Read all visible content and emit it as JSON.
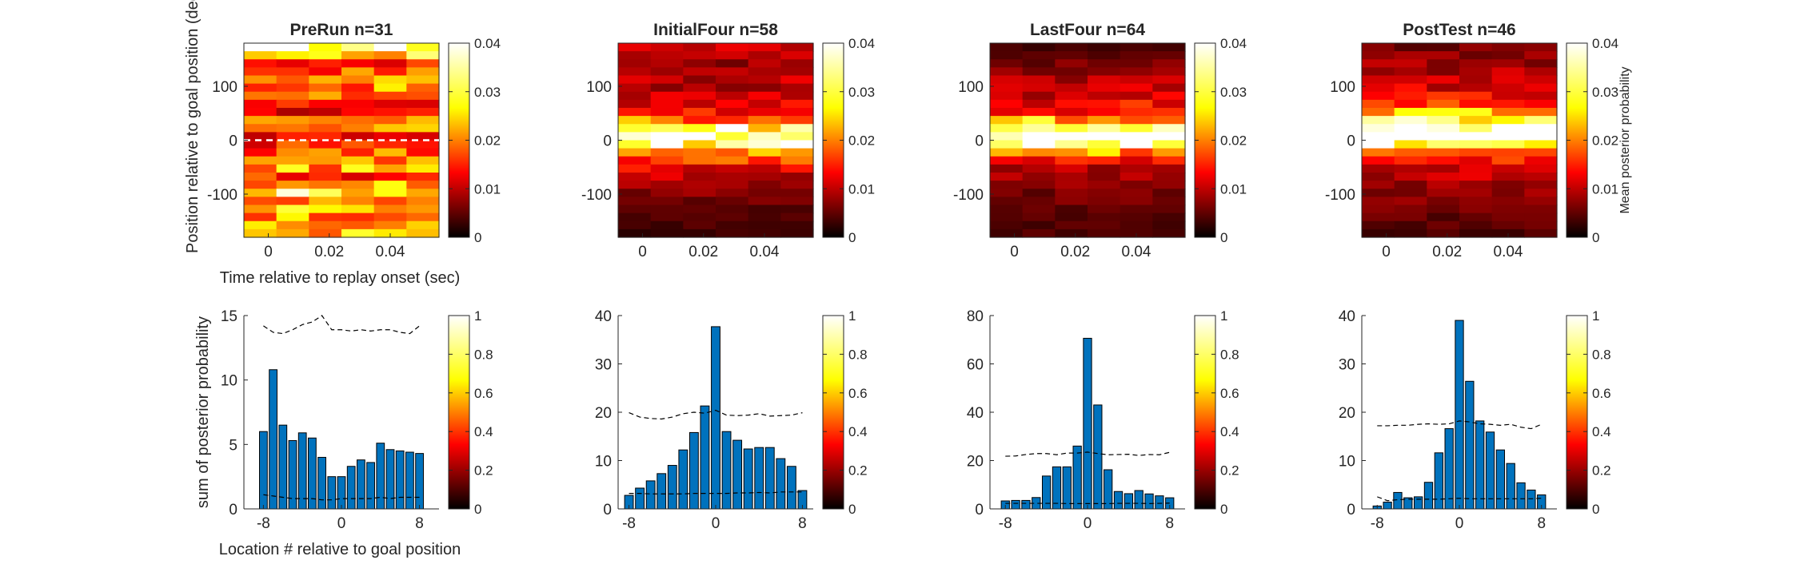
{
  "colormap_stops": [
    "#000000",
    "#800000",
    "#ff0000",
    "#ff8000",
    "#ffff00",
    "#ffff80",
    "#ffffff"
  ],
  "bar_color": "#0072bd",
  "chart_data": [
    {
      "type": "heatmap",
      "title": "PreRun n=31",
      "ylabel": "Position relative to goal position (deg",
      "xlabel": "Time relative to replay onset (sec)",
      "xticks": [
        "0",
        "0.02",
        "0.04"
      ],
      "xtick_values": [
        0,
        0.02,
        0.04
      ],
      "yticks": [
        "100",
        "0",
        "-100"
      ],
      "ytick_values": [
        100,
        0,
        -100
      ],
      "xlim": [
        -0.008,
        0.056
      ],
      "ylim": [
        -180,
        180
      ],
      "dashed_line_y": 0,
      "colorbar_ticks": [
        "0",
        "0.01",
        "0.02",
        "0.03",
        "0.04"
      ],
      "colorbar_label": "",
      "clim": [
        0,
        0.04
      ],
      "profile": [
        [
          165,
          0.036
        ],
        [
          150,
          0.026
        ],
        [
          135,
          0.015
        ],
        [
          120,
          0.018
        ],
        [
          105,
          0.022
        ],
        [
          90,
          0.02
        ],
        [
          75,
          0.018
        ],
        [
          60,
          0.014
        ],
        [
          45,
          0.012
        ],
        [
          30,
          0.018
        ],
        [
          15,
          0.022
        ],
        [
          0,
          0.012
        ],
        [
          -15,
          0.015
        ],
        [
          -30,
          0.018
        ],
        [
          -45,
          0.02
        ],
        [
          -60,
          0.022
        ],
        [
          -75,
          0.016
        ],
        [
          -90,
          0.024
        ],
        [
          -105,
          0.03
        ],
        [
          -120,
          0.018
        ],
        [
          -135,
          0.024
        ],
        [
          -150,
          0.022
        ],
        [
          -165,
          0.02
        ],
        [
          -180,
          0.024
        ]
      ]
    },
    {
      "type": "heatmap",
      "title": "InitialFour n=58",
      "xticks": [
        "0",
        "0.02",
        "0.04"
      ],
      "xtick_values": [
        0,
        0.02,
        0.04
      ],
      "yticks": [
        "100",
        "0",
        "-100"
      ],
      "ytick_values": [
        100,
        0,
        -100
      ],
      "xlim": [
        -0.008,
        0.056
      ],
      "ylim": [
        -180,
        180
      ],
      "colorbar_ticks": [
        "0",
        "0.01",
        "0.02",
        "0.03",
        "0.04"
      ],
      "colorbar_label": "",
      "clim": [
        0,
        0.04
      ],
      "profile": [
        [
          165,
          0.01
        ],
        [
          150,
          0.009
        ],
        [
          135,
          0.008
        ],
        [
          120,
          0.009
        ],
        [
          105,
          0.01
        ],
        [
          90,
          0.009
        ],
        [
          75,
          0.01
        ],
        [
          60,
          0.012
        ],
        [
          45,
          0.014
        ],
        [
          30,
          0.02
        ],
        [
          15,
          0.032
        ],
        [
          0,
          0.04
        ],
        [
          -15,
          0.032
        ],
        [
          -30,
          0.022
        ],
        [
          -45,
          0.016
        ],
        [
          -60,
          0.013
        ],
        [
          -75,
          0.01
        ],
        [
          -90,
          0.008
        ],
        [
          -105,
          0.007
        ],
        [
          -120,
          0.006
        ],
        [
          -135,
          0.005
        ],
        [
          -150,
          0.004
        ],
        [
          -165,
          0.004
        ],
        [
          -180,
          0.003
        ]
      ]
    },
    {
      "type": "heatmap",
      "title": "LastFour n=64",
      "xticks": [
        "0",
        "0.02",
        "0.04"
      ],
      "xtick_values": [
        0,
        0.02,
        0.04
      ],
      "yticks": [
        "100",
        "0",
        "-100"
      ],
      "ytick_values": [
        100,
        0,
        -100
      ],
      "xlim": [
        -0.008,
        0.056
      ],
      "ylim": [
        -180,
        180
      ],
      "colorbar_ticks": [
        "0",
        "0.01",
        "0.02",
        "0.03",
        "0.04"
      ],
      "colorbar_label": "",
      "clim": [
        0,
        0.04
      ],
      "profile": [
        [
          165,
          0.004
        ],
        [
          150,
          0.005
        ],
        [
          135,
          0.006
        ],
        [
          120,
          0.008
        ],
        [
          105,
          0.009
        ],
        [
          90,
          0.01
        ],
        [
          75,
          0.011
        ],
        [
          60,
          0.013
        ],
        [
          45,
          0.016
        ],
        [
          30,
          0.024
        ],
        [
          15,
          0.04
        ],
        [
          0,
          0.042
        ],
        [
          -15,
          0.036
        ],
        [
          -30,
          0.022
        ],
        [
          -45,
          0.014
        ],
        [
          -60,
          0.01
        ],
        [
          -75,
          0.008
        ],
        [
          -90,
          0.007
        ],
        [
          -105,
          0.006
        ],
        [
          -120,
          0.006
        ],
        [
          -135,
          0.005
        ],
        [
          -150,
          0.005
        ],
        [
          -165,
          0.004
        ],
        [
          -180,
          0.004
        ]
      ]
    },
    {
      "type": "heatmap",
      "title": "PostTest n=46",
      "xticks": [
        "0",
        "0.02",
        "0.04"
      ],
      "xtick_values": [
        0,
        0.02,
        0.04
      ],
      "yticks": [
        "100",
        "0",
        "-100"
      ],
      "ytick_values": [
        100,
        0,
        -100
      ],
      "xlim": [
        -0.008,
        0.056
      ],
      "ylim": [
        -180,
        180
      ],
      "colorbar_ticks": [
        "0",
        "0.01",
        "0.02",
        "0.03",
        "0.04"
      ],
      "colorbar_label": "Mean posterior probability",
      "clim": [
        0,
        0.04
      ],
      "profile": [
        [
          165,
          0.006
        ],
        [
          150,
          0.007
        ],
        [
          135,
          0.008
        ],
        [
          120,
          0.009
        ],
        [
          105,
          0.01
        ],
        [
          90,
          0.011
        ],
        [
          75,
          0.013
        ],
        [
          60,
          0.016
        ],
        [
          45,
          0.022
        ],
        [
          30,
          0.03
        ],
        [
          15,
          0.038
        ],
        [
          0,
          0.042
        ],
        [
          -15,
          0.034
        ],
        [
          -30,
          0.022
        ],
        [
          -45,
          0.016
        ],
        [
          -60,
          0.012
        ],
        [
          -75,
          0.01
        ],
        [
          -90,
          0.008
        ],
        [
          -105,
          0.008
        ],
        [
          -120,
          0.007
        ],
        [
          -135,
          0.006
        ],
        [
          -150,
          0.005
        ],
        [
          -165,
          0.005
        ],
        [
          -180,
          0.004
        ]
      ]
    },
    {
      "type": "bar",
      "ylabel": "sum of posterior probability",
      "xlabel": "Location # relative to goal position",
      "x": [
        -8,
        -7,
        -6,
        -5,
        -4,
        -3,
        -2,
        -1,
        0,
        1,
        2,
        3,
        4,
        5,
        6,
        7,
        8
      ],
      "values": [
        6.0,
        10.8,
        6.5,
        5.3,
        5.9,
        5.5,
        4.0,
        2.5,
        2.5,
        3.3,
        3.8,
        3.6,
        5.1,
        4.6,
        4.5,
        4.4,
        4.3
      ],
      "xticks": [
        "-8",
        "0",
        "8"
      ],
      "xtick_values": [
        -8,
        0,
        8
      ],
      "yticks": [
        "0",
        "5",
        "10",
        "15"
      ],
      "ytick_values": [
        0,
        5,
        10,
        15
      ],
      "xlim": [
        -10,
        10
      ],
      "ylim": [
        0,
        15
      ],
      "upper_dashed": [
        14.2,
        13.7,
        13.6,
        13.9,
        14.3,
        14.5,
        15.0,
        13.9,
        13.9,
        13.8,
        13.9,
        13.8,
        13.9,
        13.9,
        13.7,
        13.6,
        14.2
      ],
      "lower_dashed": [
        1.1,
        1.0,
        0.9,
        0.8,
        0.8,
        0.8,
        0.7,
        0.7,
        0.8,
        0.8,
        0.8,
        0.8,
        0.9,
        0.8,
        0.9,
        0.9,
        0.9
      ],
      "colorbar_ticks": [
        "0",
        "0.2",
        "0.4",
        "0.6",
        "0.8",
        "1"
      ],
      "clim": [
        0,
        1
      ]
    },
    {
      "type": "bar",
      "x": [
        -8,
        -7,
        -6,
        -5,
        -4,
        -3,
        -2,
        -1,
        0,
        1,
        2,
        3,
        4,
        5,
        6,
        7,
        8
      ],
      "values": [
        2.8,
        4.3,
        5.8,
        7.3,
        9.0,
        12.2,
        15.8,
        21.3,
        37.7,
        16.0,
        14.2,
        12.4,
        12.7,
        12.7,
        10.4,
        8.8,
        3.8
      ],
      "xticks": [
        "-8",
        "0",
        "8"
      ],
      "xtick_values": [
        -8,
        0,
        8
      ],
      "yticks": [
        "0",
        "10",
        "20",
        "30",
        "40"
      ],
      "ytick_values": [
        0,
        10,
        20,
        30,
        40
      ],
      "xlim": [
        -9,
        9
      ],
      "ylim": [
        0,
        40
      ],
      "upper_dashed": [
        19.9,
        19.0,
        18.7,
        18.6,
        19.0,
        19.7,
        20.0,
        19.8,
        20.4,
        19.4,
        19.3,
        19.4,
        19.7,
        19.2,
        19.3,
        19.4,
        19.9
      ],
      "lower_dashed": [
        3.2,
        3.2,
        3.1,
        3.1,
        3.1,
        3.1,
        3.2,
        3.2,
        3.2,
        3.2,
        3.3,
        3.3,
        3.4,
        3.3,
        3.5,
        3.5,
        3.5
      ],
      "colorbar_ticks": [
        "0",
        "0.2",
        "0.4",
        "0.6",
        "0.8",
        "1"
      ],
      "clim": [
        0,
        1
      ]
    },
    {
      "type": "bar",
      "x": [
        -8,
        -7,
        -6,
        -5,
        -4,
        -3,
        -2,
        -1,
        0,
        1,
        2,
        3,
        4,
        5,
        6,
        7,
        8
      ],
      "values": [
        3.3,
        3.5,
        3.5,
        4.7,
        13.6,
        17.4,
        17.4,
        26.0,
        70.6,
        43.0,
        16.2,
        7.2,
        6.3,
        7.6,
        6.2,
        5.4,
        4.6
      ],
      "xticks": [
        "-8",
        "0",
        "8"
      ],
      "xtick_values": [
        -8,
        0,
        8
      ],
      "yticks": [
        "0",
        "20",
        "40",
        "60",
        "80"
      ],
      "ytick_values": [
        0,
        20,
        40,
        60,
        80
      ],
      "xlim": [
        -9.5,
        9.5
      ],
      "ylim": [
        0,
        80
      ],
      "upper_dashed": [
        21.8,
        21.9,
        22.5,
        22.9,
        22.9,
        22.4,
        23.1,
        23.1,
        23.5,
        22.9,
        22.4,
        22.5,
        22.6,
        22.1,
        22.5,
        22.4,
        23.4
      ],
      "lower_dashed": [
        2.3,
        2.3,
        2.3,
        2.3,
        2.3,
        2.3,
        2.2,
        2.2,
        2.2,
        2.2,
        2.2,
        2.3,
        2.3,
        2.3,
        2.2,
        2.3,
        2.4
      ],
      "colorbar_ticks": [
        "0",
        "0.2",
        "0.4",
        "0.6",
        "0.8",
        "1"
      ],
      "clim": [
        0,
        1
      ]
    },
    {
      "type": "bar",
      "x": [
        -8,
        -7,
        -6,
        -5,
        -4,
        -3,
        -2,
        -1,
        0,
        1,
        2,
        3,
        4,
        5,
        6,
        7,
        8
      ],
      "values": [
        0.6,
        1.4,
        3.4,
        2.3,
        2.5,
        5.5,
        11.6,
        16.6,
        39.0,
        26.4,
        18.2,
        15.9,
        12.2,
        9.4,
        5.4,
        3.9,
        2.9
      ],
      "xticks": [
        "-8",
        "0",
        "8"
      ],
      "xtick_values": [
        -8,
        0,
        8
      ],
      "yticks": [
        "0",
        "10",
        "20",
        "30",
        "40"
      ],
      "ytick_values": [
        0,
        10,
        20,
        30,
        40
      ],
      "xlim": [
        -9.5,
        9.5
      ],
      "ylim": [
        0,
        40
      ],
      "upper_dashed": [
        17.2,
        17.2,
        17.3,
        17.3,
        17.5,
        17.6,
        17.5,
        17.6,
        18.2,
        18.0,
        17.6,
        17.5,
        17.3,
        17.5,
        16.9,
        16.6,
        17.5
      ],
      "lower_dashed": [
        2.5,
        1.7,
        1.9,
        2.0,
        2.0,
        2.0,
        2.0,
        2.1,
        2.2,
        2.1,
        2.1,
        2.1,
        2.1,
        2.1,
        2.1,
        2.1,
        2.2
      ],
      "colorbar_ticks": [
        "0",
        "0.2",
        "0.4",
        "0.6",
        "0.8",
        "1"
      ],
      "clim": [
        0,
        1
      ]
    }
  ]
}
